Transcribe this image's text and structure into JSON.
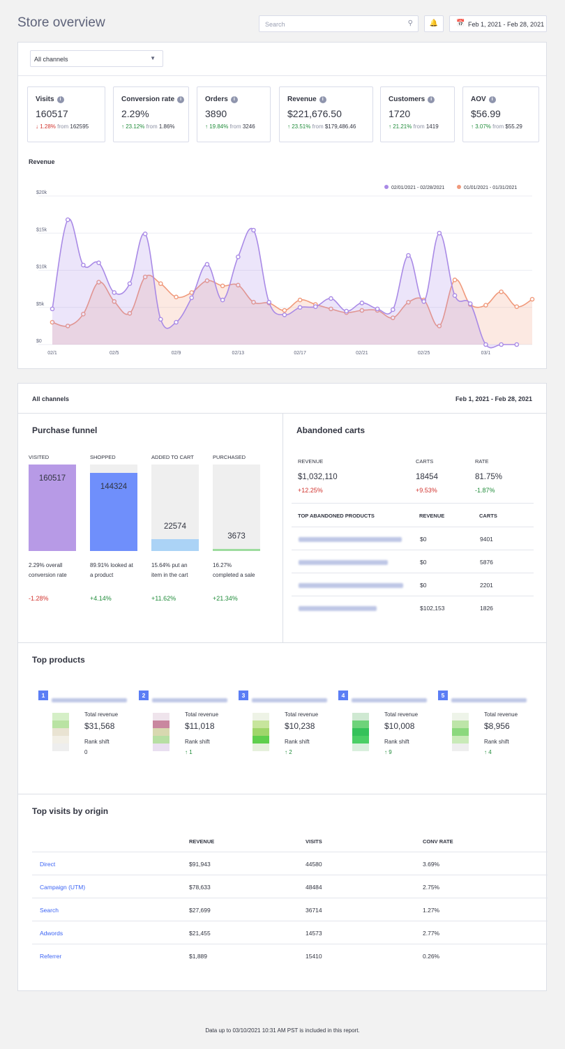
{
  "header": {
    "title": "Store overview",
    "search_placeholder": "Search",
    "date_range": "Feb 1, 2021 - Feb 28, 2021"
  },
  "filter": {
    "channel": "All channels"
  },
  "kpis": [
    {
      "label": "Visits",
      "value": "160517",
      "dir": "down",
      "pct": "1.28%",
      "from_word": "from",
      "prev": "162595"
    },
    {
      "label": "Conversion rate",
      "value": "2.29%",
      "dir": "up",
      "pct": "23.12%",
      "from_word": "from",
      "prev": "1.86%"
    },
    {
      "label": "Orders",
      "value": "3890",
      "dir": "up",
      "pct": "19.84%",
      "from_word": "from",
      "prev": "3246"
    },
    {
      "label": "Revenue",
      "value": "$221,676.50",
      "dir": "up",
      "pct": "23.51%",
      "from_word": "from",
      "prev": "$179,486.46"
    },
    {
      "label": "Customers",
      "value": "1720",
      "dir": "up",
      "pct": "21.21%",
      "from_word": "from",
      "prev": "1419"
    },
    {
      "label": "AOV",
      "value": "$56.99",
      "dir": "up",
      "pct": "3.07%",
      "from_word": "from",
      "prev": "$55.29"
    }
  ],
  "chart_data": {
    "type": "area",
    "title": "Revenue",
    "x": [
      "02/1",
      "02/2",
      "02/3",
      "02/4",
      "02/5",
      "02/6",
      "02/7",
      "02/8",
      "02/9",
      "02/10",
      "02/11",
      "02/12",
      "02/13",
      "02/14",
      "02/15",
      "02/16",
      "02/17",
      "02/18",
      "02/19",
      "02/20",
      "02/21",
      "02/22",
      "02/23",
      "02/24",
      "02/25",
      "02/26",
      "02/27",
      "02/28",
      "03/1",
      "03/2",
      "03/3",
      "03/4"
    ],
    "x_tick_labels": [
      "02/1",
      "02/5",
      "02/9",
      "02/13",
      "02/17",
      "02/21",
      "02/25",
      "03/1"
    ],
    "y_tick_labels": [
      "$0",
      "$5k",
      "$10k",
      "$15k",
      "$20k"
    ],
    "ylim": [
      0,
      20000
    ],
    "legend_position": "top-right",
    "series": [
      {
        "name": "02/01/2021 - 02/28/2021",
        "color": "#a98ae6",
        "values": [
          4800,
          16800,
          10700,
          11000,
          7000,
          8200,
          14900,
          3400,
          3000,
          6300,
          10800,
          6000,
          11800,
          15400,
          5700,
          4000,
          5000,
          5100,
          6200,
          4500,
          5600,
          4800,
          4700,
          12000,
          5800,
          15000,
          6600,
          5500,
          0,
          0,
          0,
          null
        ]
      },
      {
        "name": "01/01/2021 - 01/31/2021",
        "color": "#f0997b",
        "values": [
          3000,
          2500,
          4100,
          8400,
          5800,
          4200,
          9100,
          8200,
          6400,
          7000,
          8600,
          7900,
          8000,
          5700,
          5600,
          4600,
          6000,
          5400,
          4800,
          4300,
          4600,
          4600,
          3600,
          5700,
          6000,
          2500,
          8700,
          5400,
          5300,
          7100,
          5100,
          6100
        ]
      }
    ]
  },
  "summary_bar": {
    "title": "All channels",
    "date": "Feb 1, 2021 - Feb 28, 2021"
  },
  "funnel": {
    "title": "Purchase funnel",
    "steps": [
      {
        "label": "VISITED",
        "value": "160517",
        "fill_fraction": 1.0,
        "color": "#b79ae6",
        "desc1": "2.29% overall",
        "desc2": "conversion rate",
        "delta": "-1.28%",
        "dir": "down"
      },
      {
        "label": "SHOPPED",
        "value": "144324",
        "fill_fraction": 0.9,
        "color": "#6f8ffb",
        "desc1": "89.91% looked at",
        "desc2": "a product",
        "delta": "+4.14%",
        "dir": "up"
      },
      {
        "label": "ADDED TO CART",
        "value": "22574",
        "fill_fraction": 0.14,
        "color": "#abd3f6",
        "desc1": "15.64% put an",
        "desc2": "item in the cart",
        "delta": "+11.62%",
        "dir": "up"
      },
      {
        "label": "PURCHASED",
        "value": "3673",
        "fill_fraction": 0.025,
        "color": "#9ddc9e",
        "desc1": "16.27%",
        "desc2": "completed a sale",
        "delta": "+21.34%",
        "dir": "up"
      }
    ]
  },
  "abandoned": {
    "title": "Abandoned carts",
    "headers": [
      "REVENUE",
      "CARTS",
      "RATE"
    ],
    "values": [
      "$1,032,110",
      "18454",
      "81.75%"
    ],
    "deltas": [
      "+12.25%",
      "+9.53%",
      "-1.87%"
    ],
    "products_headers": [
      "TOP ABANDONED PRODUCTS",
      "REVENUE",
      "CARTS"
    ],
    "products": [
      {
        "revenue": "$0",
        "carts": "9401"
      },
      {
        "revenue": "$0",
        "carts": "5876"
      },
      {
        "revenue": "$0",
        "carts": "2201"
      },
      {
        "revenue": "$102,153",
        "carts": "1826"
      }
    ]
  },
  "top_products": {
    "title": "Top products",
    "total_label": "Total revenue",
    "rank_label": "Rank shift",
    "items": [
      {
        "rank": "1",
        "revenue": "$31,568",
        "shift": "0",
        "shift_dir": "none"
      },
      {
        "rank": "2",
        "revenue": "$11,018",
        "shift": "1",
        "shift_dir": "up"
      },
      {
        "rank": "3",
        "revenue": "$10,238",
        "shift": "2",
        "shift_dir": "up"
      },
      {
        "rank": "4",
        "revenue": "$10,008",
        "shift": "9",
        "shift_dir": "up"
      },
      {
        "rank": "5",
        "revenue": "$8,956",
        "shift": "4",
        "shift_dir": "up"
      }
    ]
  },
  "origins": {
    "title": "Top visits by origin",
    "headers": [
      "REVENUE",
      "VISITS",
      "CONV RATE"
    ],
    "rows": [
      {
        "name": "Direct",
        "revenue": "$91,943",
        "visits": "44580",
        "conv": "3.69%"
      },
      {
        "name": "Campaign (UTM)",
        "revenue": "$78,633",
        "visits": "48484",
        "conv": "2.75%"
      },
      {
        "name": "Search",
        "revenue": "$27,699",
        "visits": "36714",
        "conv": "1.27%"
      },
      {
        "name": "Adwords",
        "revenue": "$21,455",
        "visits": "14573",
        "conv": "2.77%"
      },
      {
        "name": "Referrer",
        "revenue": "$1,889",
        "visits": "15410",
        "conv": "0.26%"
      }
    ]
  },
  "footer": {
    "note": "Data up to 03/10/2021 10:31 AM PST is included in this report."
  }
}
